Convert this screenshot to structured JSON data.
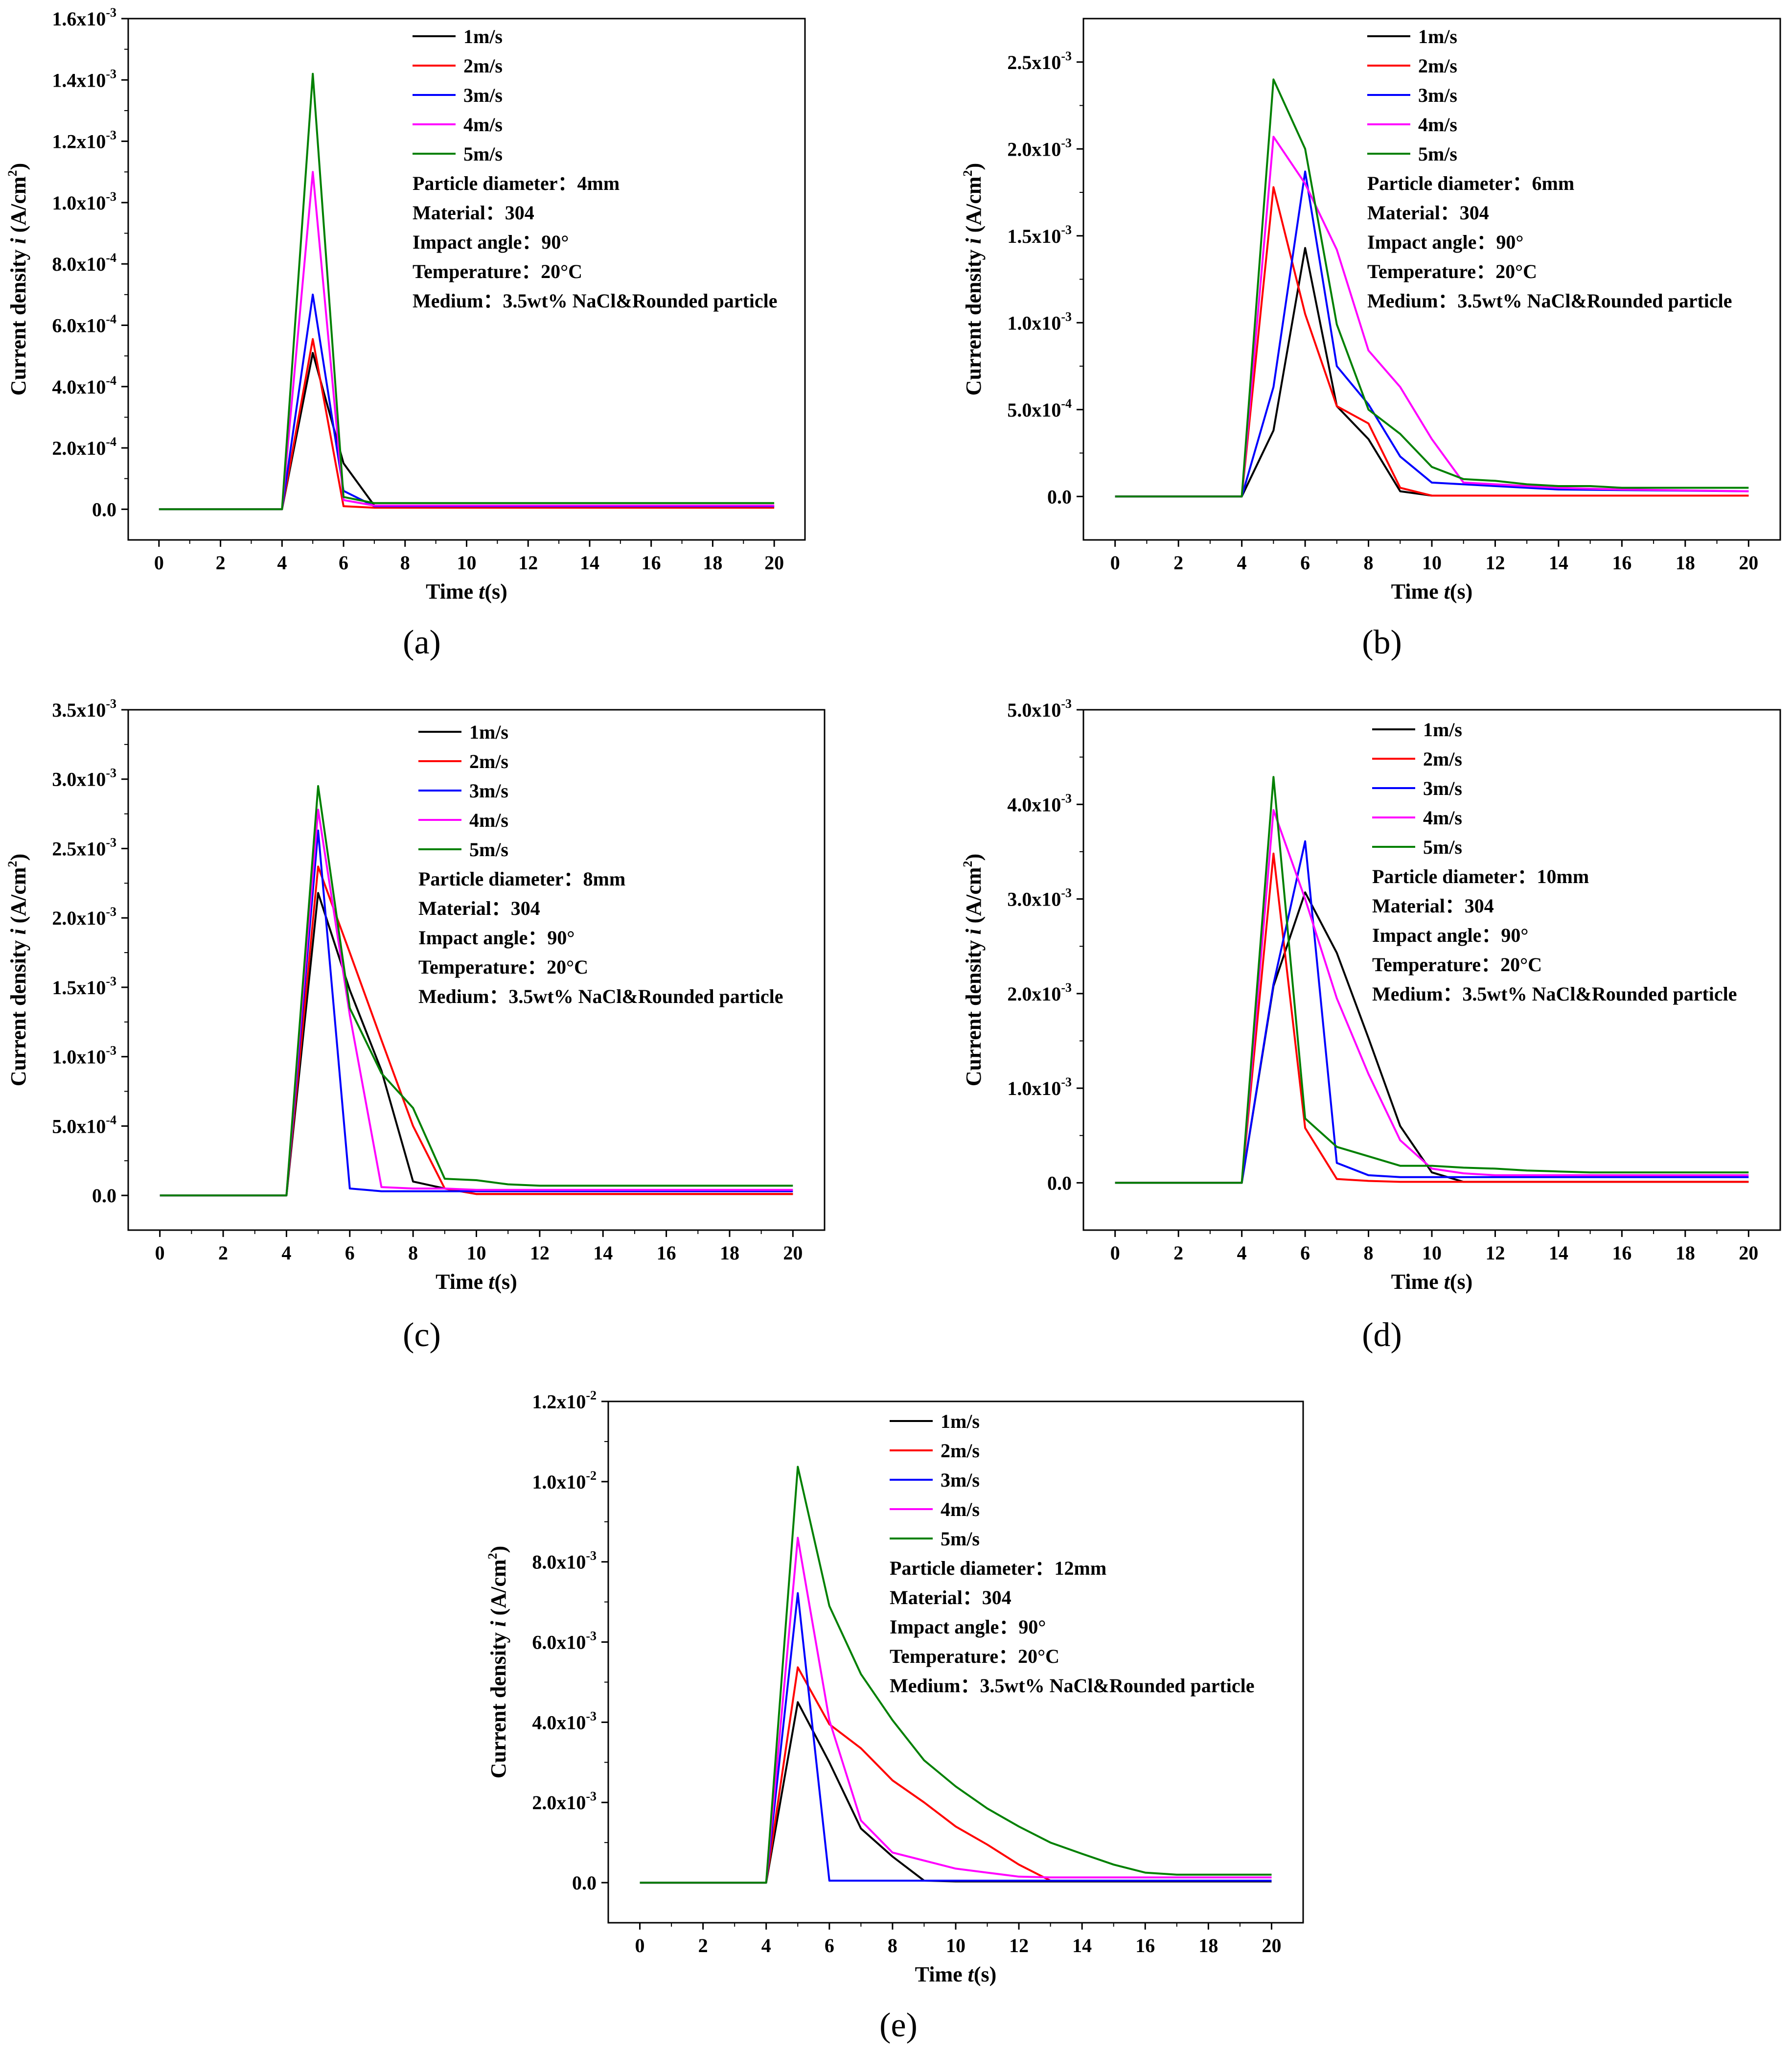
{
  "figure": {
    "legend_labels": [
      "1m/s",
      "2m/s",
      "3m/s",
      "4m/s",
      "5m/s"
    ],
    "series_colors": [
      "#000000",
      "#ff0000",
      "#0000ff",
      "#ff00ff",
      "#008000"
    ],
    "xlabel_prefix": "Time ",
    "xlabel_var": "t",
    "xlabel_suffix": "(s)",
    "ylabel_prefix": "Current density ",
    "ylabel_var": "i",
    "ylabel_units": " (A/cm",
    "ylabel_exp": "2",
    "ylabel_close": ")"
  },
  "chart_data": [
    {
      "id": "a",
      "type": "line",
      "panel_label": "(a)",
      "xlim": [
        -1,
        21
      ],
      "xticks": [
        0,
        2,
        4,
        6,
        8,
        10,
        12,
        14,
        16,
        18,
        20
      ],
      "ylim": [
        -0.0001,
        0.0016
      ],
      "yticks": [
        {
          "value": 0,
          "mantissa": "0.0",
          "exp": ""
        },
        {
          "value": 0.0002,
          "mantissa": "2.0x10",
          "exp": "-4"
        },
        {
          "value": 0.0004,
          "mantissa": "4.0x10",
          "exp": "-4"
        },
        {
          "value": 0.0006,
          "mantissa": "6.0x10",
          "exp": "-4"
        },
        {
          "value": 0.0008,
          "mantissa": "8.0x10",
          "exp": "-4"
        },
        {
          "value": 0.001,
          "mantissa": "1.0x10",
          "exp": "-3"
        },
        {
          "value": 0.0012,
          "mantissa": "1.2x10",
          "exp": "-3"
        },
        {
          "value": 0.0014,
          "mantissa": "1.4x10",
          "exp": "-3"
        },
        {
          "value": 0.0016,
          "mantissa": "1.6x10",
          "exp": "-3"
        }
      ],
      "info": [
        "Particle diameter：4mm",
        "Material：304",
        "Impact angle：90°",
        "Temperature：20°C",
        "Medium：3.5wt% NaCl&Rounded particle"
      ],
      "series": [
        {
          "name": "1m/s",
          "x": [
            0,
            1,
            2,
            3,
            4,
            5,
            6,
            7,
            8,
            20
          ],
          "y": [
            0,
            0,
            0,
            0,
            0,
            0.00051,
            0.00015,
            1.2e-05,
            8e-06,
            8e-06
          ]
        },
        {
          "name": "2m/s",
          "x": [
            0,
            1,
            2,
            3,
            4,
            5,
            6,
            7,
            8,
            20
          ],
          "y": [
            0,
            0,
            0,
            0,
            0,
            0.000555,
            1e-05,
            5e-06,
            5e-06,
            5e-06
          ]
        },
        {
          "name": "3m/s",
          "x": [
            0,
            1,
            2,
            3,
            4,
            5,
            6,
            7,
            8,
            20
          ],
          "y": [
            0,
            0,
            0,
            0,
            0,
            0.0007,
            6e-05,
            1e-05,
            1e-05,
            1e-05
          ]
        },
        {
          "name": "4m/s",
          "x": [
            0,
            1,
            2,
            3,
            4,
            5,
            6,
            7,
            8,
            20
          ],
          "y": [
            0,
            0,
            0,
            0,
            0,
            0.0011,
            3e-05,
            1.2e-05,
            1.2e-05,
            1.2e-05
          ]
        },
        {
          "name": "5m/s",
          "x": [
            0,
            1,
            2,
            3,
            4,
            5,
            6,
            7,
            8,
            20
          ],
          "y": [
            0,
            0,
            0,
            0,
            0,
            0.00142,
            4e-05,
            2e-05,
            2e-05,
            2e-05
          ]
        }
      ]
    },
    {
      "id": "b",
      "type": "line",
      "panel_label": "(b)",
      "xlim": [
        -1,
        21
      ],
      "xticks": [
        0,
        2,
        4,
        6,
        8,
        10,
        12,
        14,
        16,
        18,
        20
      ],
      "ylim": [
        -0.00025,
        0.00275
      ],
      "yticks": [
        {
          "value": 0,
          "mantissa": "0.0",
          "exp": ""
        },
        {
          "value": 0.0005,
          "mantissa": "5.0x10",
          "exp": "-4"
        },
        {
          "value": 0.001,
          "mantissa": "1.0x10",
          "exp": "-3"
        },
        {
          "value": 0.0015,
          "mantissa": "1.5x10",
          "exp": "-3"
        },
        {
          "value": 0.002,
          "mantissa": "2.0x10",
          "exp": "-3"
        },
        {
          "value": 0.0025,
          "mantissa": "2.5x10",
          "exp": "-3"
        }
      ],
      "info": [
        "Particle diameter：6mm",
        "Material：304",
        "Impact angle：90°",
        "Temperature：20°C",
        "Medium：3.5wt% NaCl&Rounded particle"
      ],
      "series": [
        {
          "name": "1m/s",
          "x": [
            0,
            4,
            5,
            6,
            7,
            8,
            9,
            10,
            20
          ],
          "y": [
            0,
            0,
            0.00038,
            0.00143,
            0.00052,
            0.00033,
            3e-05,
            5e-06,
            5e-06
          ]
        },
        {
          "name": "2m/s",
          "x": [
            0,
            4,
            5,
            6,
            7,
            8,
            9,
            10,
            20
          ],
          "y": [
            0,
            0,
            0.00178,
            0.00105,
            0.00052,
            0.00042,
            5e-05,
            5e-06,
            5e-06
          ]
        },
        {
          "name": "3m/s",
          "x": [
            0,
            4,
            5,
            6,
            7,
            8,
            9,
            10,
            12,
            14,
            20
          ],
          "y": [
            0,
            0,
            0.00063,
            0.00187,
            0.00075,
            0.00053,
            0.00023,
            8e-05,
            6e-05,
            4e-05,
            3e-05
          ]
        },
        {
          "name": "4m/s",
          "x": [
            0,
            4,
            5,
            6,
            7,
            8,
            9,
            10,
            11,
            12,
            14,
            16,
            20
          ],
          "y": [
            0,
            0,
            0.00207,
            0.0018,
            0.00142,
            0.00084,
            0.00063,
            0.00033,
            8e-05,
            7e-05,
            5e-05,
            4e-05,
            3e-05
          ]
        },
        {
          "name": "5m/s",
          "x": [
            0,
            4,
            5,
            6,
            7,
            8,
            9,
            10,
            11,
            12,
            13,
            14,
            15,
            16,
            20
          ],
          "y": [
            0,
            0,
            0.0024,
            0.002,
            0.00099,
            0.0005,
            0.00036,
            0.00017,
            0.0001,
            9e-05,
            7e-05,
            6e-05,
            6e-05,
            5e-05,
            5e-05
          ]
        }
      ]
    },
    {
      "id": "c",
      "type": "line",
      "panel_label": "(c)",
      "xlim": [
        -1,
        21
      ],
      "xticks": [
        0,
        2,
        4,
        6,
        8,
        10,
        12,
        14,
        16,
        18,
        20
      ],
      "ylim": [
        -0.00025,
        0.0035
      ],
      "yticks": [
        {
          "value": 0,
          "mantissa": "0.0",
          "exp": ""
        },
        {
          "value": 0.0005,
          "mantissa": "5.0x10",
          "exp": "-4"
        },
        {
          "value": 0.001,
          "mantissa": "1.0x10",
          "exp": "-3"
        },
        {
          "value": 0.0015,
          "mantissa": "1.5x10",
          "exp": "-3"
        },
        {
          "value": 0.002,
          "mantissa": "2.0x10",
          "exp": "-3"
        },
        {
          "value": 0.0025,
          "mantissa": "2.5x10",
          "exp": "-3"
        },
        {
          "value": 0.003,
          "mantissa": "3.0x10",
          "exp": "-3"
        },
        {
          "value": 0.0035,
          "mantissa": "3.5x10",
          "exp": "-3"
        }
      ],
      "info": [
        "Particle diameter：8mm",
        "Material：304",
        "Impact angle：90°",
        "Temperature：20°C",
        "Medium：3.5wt% NaCl&Rounded particle"
      ],
      "series": [
        {
          "name": "1m/s",
          "x": [
            0,
            4,
            5,
            6,
            7,
            8,
            9,
            10,
            20
          ],
          "y": [
            0,
            0,
            0.00218,
            0.00148,
            0.0009,
            0.0001,
            5e-05,
            1e-05,
            1e-05
          ]
        },
        {
          "name": "2m/s",
          "x": [
            0,
            4,
            5,
            6,
            7,
            8,
            9,
            10,
            20
          ],
          "y": [
            0,
            0,
            0.00237,
            0.00175,
            0.00112,
            0.0005,
            5e-05,
            1e-05,
            1e-05
          ]
        },
        {
          "name": "3m/s",
          "x": [
            0,
            4,
            5,
            6,
            7,
            8,
            9,
            20
          ],
          "y": [
            0,
            0,
            0.00263,
            5e-05,
            3e-05,
            3e-05,
            3e-05,
            3e-05
          ]
        },
        {
          "name": "4m/s",
          "x": [
            0,
            4,
            5,
            6,
            7,
            8,
            9,
            10,
            20
          ],
          "y": [
            0,
            0,
            0.00278,
            0.0013,
            6e-05,
            5e-05,
            5e-05,
            4e-05,
            4e-05
          ]
        },
        {
          "name": "5m/s",
          "x": [
            0,
            4,
            5,
            6,
            7,
            8,
            9,
            10,
            11,
            12,
            20
          ],
          "y": [
            0,
            0,
            0.00295,
            0.00135,
            0.00088,
            0.00063,
            0.00012,
            0.00011,
            8e-05,
            7e-05,
            7e-05
          ]
        }
      ]
    },
    {
      "id": "d",
      "type": "line",
      "panel_label": "(d)",
      "xlim": [
        -1,
        21
      ],
      "xticks": [
        0,
        2,
        4,
        6,
        8,
        10,
        12,
        14,
        16,
        18,
        20
      ],
      "ylim": [
        -0.0005,
        0.005
      ],
      "yticks": [
        {
          "value": 0,
          "mantissa": "0.0",
          "exp": ""
        },
        {
          "value": 0.001,
          "mantissa": "1.0x10",
          "exp": "-3"
        },
        {
          "value": 0.002,
          "mantissa": "2.0x10",
          "exp": "-3"
        },
        {
          "value": 0.003,
          "mantissa": "3.0x10",
          "exp": "-3"
        },
        {
          "value": 0.004,
          "mantissa": "4.0x10",
          "exp": "-3"
        },
        {
          "value": 0.005,
          "mantissa": "5.0x10",
          "exp": "-3"
        }
      ],
      "info": [
        "Particle diameter：10mm",
        "Material：304",
        "Impact angle：90°",
        "Temperature：20°C",
        "Medium：3.5wt% NaCl&Rounded particle"
      ],
      "series": [
        {
          "name": "1m/s",
          "x": [
            0,
            4,
            5,
            6,
            7,
            8,
            9,
            10,
            11,
            20
          ],
          "y": [
            0,
            0,
            0.00208,
            0.00307,
            0.00243,
            0.00153,
            0.0006,
            0.00011,
            1e-05,
            1e-05
          ]
        },
        {
          "name": "2m/s",
          "x": [
            0,
            4,
            5,
            6,
            7,
            8,
            9,
            20
          ],
          "y": [
            0,
            0,
            0.00348,
            0.00058,
            4e-05,
            2e-05,
            1e-05,
            1e-05
          ]
        },
        {
          "name": "3m/s",
          "x": [
            0,
            4,
            5,
            6,
            7,
            8,
            9,
            20
          ],
          "y": [
            0,
            0,
            0.0021,
            0.00361,
            0.00021,
            8e-05,
            6e-05,
            6e-05
          ]
        },
        {
          "name": "4m/s",
          "x": [
            0,
            4,
            5,
            6,
            7,
            8,
            9,
            10,
            11,
            12,
            14,
            20
          ],
          "y": [
            0,
            0,
            0.00394,
            0.003,
            0.00195,
            0.00115,
            0.00045,
            0.00015,
            0.0001,
            8e-05,
            8e-05,
            8e-05
          ]
        },
        {
          "name": "5m/s",
          "x": [
            0,
            4,
            5,
            6,
            7,
            8,
            9,
            10,
            11,
            12,
            13,
            14,
            15,
            20
          ],
          "y": [
            0,
            0,
            0.00429,
            0.00068,
            0.00038,
            0.00028,
            0.00018,
            0.00018,
            0.00016,
            0.00015,
            0.00013,
            0.00012,
            0.00011,
            0.00011
          ]
        }
      ]
    },
    {
      "id": "e",
      "type": "line",
      "panel_label": "(e)",
      "xlim": [
        -1,
        21
      ],
      "xticks": [
        0,
        2,
        4,
        6,
        8,
        10,
        12,
        14,
        16,
        18,
        20
      ],
      "ylim": [
        -0.001,
        0.012
      ],
      "yticks": [
        {
          "value": 0,
          "mantissa": "0.0",
          "exp": ""
        },
        {
          "value": 0.002,
          "mantissa": "2.0x10",
          "exp": "-3"
        },
        {
          "value": 0.004,
          "mantissa": "4.0x10",
          "exp": "-3"
        },
        {
          "value": 0.006,
          "mantissa": "6.0x10",
          "exp": "-3"
        },
        {
          "value": 0.008,
          "mantissa": "8.0x10",
          "exp": "-3"
        },
        {
          "value": 0.01,
          "mantissa": "1.0x10",
          "exp": "-2"
        },
        {
          "value": 0.012,
          "mantissa": "1.2x10",
          "exp": "-2"
        }
      ],
      "info": [
        "Particle diameter：12mm",
        "Material：304",
        "Impact angle：90°",
        "Temperature：20°C",
        "Medium：3.5wt% NaCl&Rounded particle"
      ],
      "series": [
        {
          "name": "1m/s",
          "x": [
            0,
            4,
            5,
            6,
            7,
            8,
            9,
            10,
            20
          ],
          "y": [
            0,
            0,
            0.0045,
            0.003,
            0.00135,
            0.00065,
            5e-05,
            3e-05,
            3e-05
          ]
        },
        {
          "name": "2m/s",
          "x": [
            0,
            4,
            5,
            6,
            7,
            8,
            9,
            10,
            11,
            12,
            13,
            20
          ],
          "y": [
            0,
            0,
            0.00537,
            0.00395,
            0.00335,
            0.00255,
            0.002,
            0.0014,
            0.00095,
            0.00045,
            5e-05,
            5e-05
          ]
        },
        {
          "name": "3m/s",
          "x": [
            0,
            4,
            5,
            6,
            7,
            20
          ],
          "y": [
            0,
            0,
            0.00722,
            5e-05,
            5e-05,
            5e-05
          ]
        },
        {
          "name": "4m/s",
          "x": [
            0,
            4,
            5,
            6,
            7,
            8,
            9,
            10,
            11,
            12,
            13,
            20
          ],
          "y": [
            0,
            0,
            0.0086,
            0.00405,
            0.00155,
            0.00075,
            0.00055,
            0.00035,
            0.00025,
            0.00015,
            0.00013,
            0.00013
          ]
        },
        {
          "name": "5m/s",
          "x": [
            0,
            4,
            5,
            6,
            7,
            8,
            9,
            10,
            11,
            12,
            13,
            14,
            15,
            16,
            17,
            20
          ],
          "y": [
            0,
            0,
            0.01037,
            0.0069,
            0.0052,
            0.00405,
            0.00305,
            0.0024,
            0.00185,
            0.0014,
            0.001,
            0.00072,
            0.00045,
            0.00025,
            0.0002,
            0.0002
          ]
        }
      ]
    }
  ]
}
